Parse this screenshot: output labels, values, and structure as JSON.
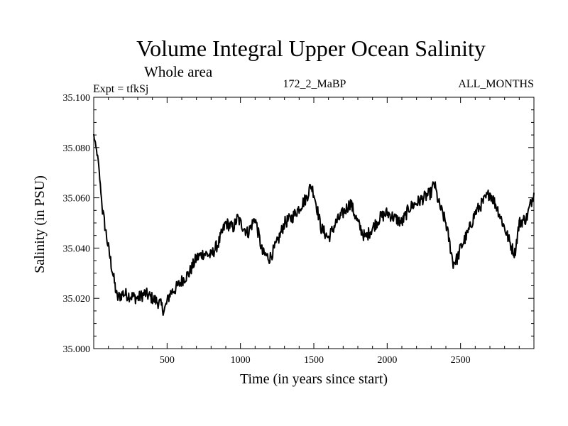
{
  "chart_data": {
    "type": "line",
    "title": "Volume Integral Upper Ocean Salinity",
    "subtitle": "Whole area",
    "expt_label": "Expt = tfkSj",
    "run_label": "172_2_MaBP",
    "months_label": "ALL_MONTHS",
    "xlabel": "Time (in years since start)",
    "ylabel": "Salinity (in PSU)",
    "xlim": [
      0,
      3000
    ],
    "ylim": [
      35.0,
      35.1
    ],
    "x_ticks": [
      500,
      1000,
      1500,
      2000,
      2500
    ],
    "x_tick_labels": [
      "500",
      "1000",
      "1500",
      "2000",
      "2500"
    ],
    "y_ticks": [
      35.0,
      35.02,
      35.04,
      35.06,
      35.08,
      35.1
    ],
    "y_tick_labels": [
      "35.000",
      "35.020",
      "35.040",
      "35.060",
      "35.080",
      "35.100"
    ],
    "series": [
      {
        "name": "salinity",
        "color": "#000000",
        "x": [
          0,
          30,
          60,
          100,
          130,
          160,
          200,
          250,
          300,
          350,
          400,
          450,
          480,
          520,
          560,
          600,
          650,
          700,
          750,
          800,
          850,
          900,
          950,
          980,
          1000,
          1050,
          1100,
          1150,
          1200,
          1250,
          1300,
          1350,
          1400,
          1450,
          1480,
          1500,
          1550,
          1600,
          1650,
          1700,
          1750,
          1800,
          1850,
          1900,
          1950,
          2000,
          2050,
          2100,
          2150,
          2200,
          2250,
          2300,
          2320,
          2350,
          2400,
          2450,
          2480,
          2500,
          2550,
          2600,
          2650,
          2700,
          2750,
          2800,
          2850,
          2870,
          2900,
          2950,
          3000
        ],
        "values": [
          35.085,
          35.075,
          35.055,
          35.04,
          35.03,
          35.02,
          35.022,
          35.021,
          35.02,
          35.022,
          35.02,
          35.018,
          35.015,
          35.022,
          35.024,
          35.027,
          35.03,
          35.036,
          35.038,
          35.037,
          35.042,
          35.05,
          35.048,
          35.052,
          35.05,
          35.046,
          35.052,
          35.038,
          35.036,
          35.042,
          35.05,
          35.052,
          35.056,
          35.06,
          35.065,
          35.062,
          35.048,
          35.044,
          35.05,
          35.054,
          35.058,
          35.05,
          35.044,
          35.048,
          35.052,
          35.054,
          35.052,
          35.05,
          35.056,
          35.058,
          35.06,
          35.062,
          35.066,
          35.058,
          35.05,
          35.034,
          35.036,
          35.04,
          35.046,
          35.054,
          35.058,
          35.062,
          35.056,
          35.048,
          35.04,
          35.038,
          35.05,
          35.052,
          35.062
        ]
      }
    ],
    "noise_amplitude": 0.0025,
    "grid": false
  }
}
